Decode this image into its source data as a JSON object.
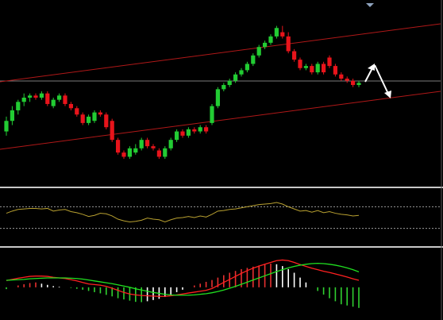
{
  "colors": {
    "background": "#000000",
    "bull_candle": "#22cc33",
    "bear_candle": "#e8141b",
    "channel_line": "#b01818",
    "horizontal_line": "#7a7a7a",
    "panel_separator": "#c8c8c8",
    "oscillator_line": "#b8a030",
    "oscillator_levels": "#9a9a9a",
    "macd_fast": "#ff2020",
    "macd_slow": "#20e020",
    "hist_pos_strong": "#e83030",
    "hist_pos_weak": "#ffffff",
    "hist_neg_strong": "#30d030",
    "hist_neg_weak": "#ffffff",
    "arrow": "#ffffff",
    "scroll_marker": "#8fa4bf"
  },
  "chart_data": [
    {
      "type": "candlestick",
      "panel": "price",
      "x": [
        0,
        1,
        2,
        3,
        4,
        5,
        6,
        7,
        8,
        9,
        10,
        11,
        12,
        13,
        14,
        15,
        16,
        17,
        18,
        19,
        20,
        21,
        22,
        23,
        24,
        25,
        26,
        27,
        28,
        29,
        30,
        31,
        32,
        33,
        34,
        35,
        36,
        37,
        38,
        39,
        40,
        41,
        42,
        43,
        44,
        45,
        46,
        47,
        48,
        49,
        50,
        51,
        52,
        53,
        54,
        55,
        56,
        57,
        58,
        59,
        60
      ],
      "open": [
        80,
        85,
        90,
        94,
        96,
        97,
        96,
        98,
        92,
        95,
        97,
        93,
        91,
        88,
        84,
        85,
        89,
        88,
        85,
        76,
        70,
        68,
        70,
        72,
        76,
        73,
        71,
        68,
        72,
        76,
        80,
        78,
        81,
        80,
        82,
        84,
        92,
        100,
        102,
        104,
        107,
        109,
        112,
        116,
        120,
        122,
        125,
        127,
        125,
        118,
        114,
        110,
        111,
        108,
        112,
        115,
        111,
        107,
        105,
        104,
        102
      ],
      "close": [
        85,
        90,
        94,
        96,
        97,
        96,
        98,
        93,
        95,
        97,
        93,
        91,
        88,
        84,
        87,
        89,
        88,
        82,
        76,
        70,
        68,
        72,
        72,
        76,
        73,
        72,
        68,
        72,
        76,
        80,
        78,
        81,
        80,
        82,
        80,
        92,
        100,
        102,
        104,
        107,
        109,
        112,
        116,
        120,
        122,
        125,
        129,
        125,
        118,
        114,
        110,
        111,
        108,
        112,
        108,
        111,
        107,
        105,
        104,
        102,
        103
      ],
      "high": [
        87,
        92,
        95,
        98,
        98,
        98,
        99,
        99,
        96,
        98,
        98,
        94,
        92,
        89,
        88,
        90,
        90,
        89,
        86,
        77,
        71,
        73,
        74,
        77,
        77,
        74,
        72,
        73,
        77,
        81,
        81,
        82,
        82,
        83,
        83,
        93,
        101,
        103,
        105,
        108,
        110,
        113,
        117,
        121,
        123,
        126,
        130,
        130,
        127,
        119,
        115,
        112,
        112,
        113,
        113,
        116,
        112,
        108,
        106,
        105,
        104
      ],
      "low": [
        78,
        83,
        88,
        92,
        94,
        95,
        95,
        92,
        91,
        94,
        92,
        90,
        87,
        83,
        83,
        84,
        87,
        81,
        75,
        69,
        67,
        67,
        69,
        71,
        72,
        71,
        67,
        67,
        71,
        75,
        77,
        77,
        79,
        79,
        79,
        83,
        91,
        99,
        101,
        103,
        106,
        108,
        111,
        115,
        119,
        121,
        124,
        124,
        117,
        113,
        109,
        109,
        107,
        107,
        107,
        110,
        106,
        104,
        103,
        101,
        101
      ],
      "ylim": [
        55,
        140
      ]
    },
    {
      "type": "line",
      "panel": "oscillator",
      "x": [
        0,
        1,
        2,
        3,
        4,
        5,
        6,
        7,
        8,
        9,
        10,
        11,
        12,
        13,
        14,
        15,
        16,
        17,
        18,
        19,
        20,
        21,
        22,
        23,
        24,
        25,
        26,
        27,
        28,
        29,
        30,
        31,
        32,
        33,
        34,
        35,
        36,
        37,
        38,
        39,
        40,
        41,
        42,
        43,
        44,
        45,
        46,
        47,
        48,
        49,
        50,
        51,
        52,
        53,
        54,
        55,
        56,
        57,
        58,
        59,
        60
      ],
      "series": [
        {
          "values": [
            58,
            62,
            65,
            66,
            67,
            67,
            66,
            67,
            62,
            64,
            65,
            61,
            59,
            56,
            52,
            54,
            58,
            57,
            53,
            47,
            44,
            42,
            43,
            45,
            49,
            47,
            46,
            42,
            46,
            49,
            50,
            52,
            50,
            53,
            51,
            56,
            62,
            63,
            65,
            66,
            68,
            70,
            72,
            74,
            75,
            76,
            78,
            75,
            70,
            66,
            62,
            63,
            60,
            63,
            59,
            61,
            58,
            56,
            55,
            53,
            54
          ]
        }
      ],
      "levels": [
        70,
        30
      ],
      "ylim": [
        0,
        100
      ]
    },
    {
      "type": "line+bar",
      "panel": "macd",
      "x": [
        0,
        1,
        2,
        3,
        4,
        5,
        6,
        7,
        8,
        9,
        10,
        11,
        12,
        13,
        14,
        15,
        16,
        17,
        18,
        19,
        20,
        21,
        22,
        23,
        24,
        25,
        26,
        27,
        28,
        29,
        30,
        31,
        32,
        33,
        34,
        35,
        36,
        37,
        38,
        39,
        40,
        41,
        42,
        43,
        44,
        45,
        46,
        47,
        48,
        49,
        50,
        51,
        52,
        53,
        54,
        55,
        56,
        57,
        58,
        59,
        60
      ],
      "series": [
        {
          "values": [
            2.2,
            2.6,
            3.0,
            3.3,
            3.6,
            3.7,
            3.7,
            3.6,
            3.3,
            3.1,
            2.9,
            2.5,
            2.1,
            1.6,
            1.1,
            0.9,
            0.7,
            0.3,
            -0.3,
            -1.0,
            -1.7,
            -2.2,
            -2.5,
            -2.7,
            -2.8,
            -2.9,
            -3.0,
            -3.0,
            -2.8,
            -2.5,
            -2.2,
            -1.9,
            -1.6,
            -1.3,
            -1.0,
            -0.4,
            0.6,
            1.6,
            2.6,
            3.6,
            4.6,
            5.5,
            6.3,
            7.0,
            7.6,
            8.2,
            8.8,
            9.0,
            8.8,
            8.2,
            7.5,
            6.9,
            6.3,
            5.8,
            5.3,
            4.9,
            4.4,
            3.9,
            3.4,
            2.8,
            2.3
          ]
        },
        {
          "values": [
            2.3,
            2.4,
            2.5,
            2.6,
            2.8,
            2.9,
            3.0,
            3.1,
            3.1,
            3.1,
            3.1,
            3.0,
            2.9,
            2.7,
            2.4,
            2.1,
            1.8,
            1.5,
            1.2,
            0.8,
            0.4,
            -0.0,
            -0.5,
            -0.9,
            -1.3,
            -1.7,
            -2.0,
            -2.3,
            -2.5,
            -2.6,
            -2.6,
            -2.6,
            -2.5,
            -2.3,
            -2.1,
            -1.8,
            -1.4,
            -0.9,
            -0.3,
            0.3,
            1.0,
            1.7,
            2.4,
            3.1,
            3.8,
            4.5,
            5.2,
            5.8,
            6.4,
            6.9,
            7.3,
            7.6,
            7.8,
            7.9,
            7.8,
            7.6,
            7.3,
            6.9,
            6.4,
            5.8,
            5.1
          ]
        }
      ],
      "histogram": [
        -0.6,
        0.0,
        0.6,
        1.0,
        1.4,
        1.6,
        1.2,
        0.8,
        0.4,
        0.2,
        0.0,
        -0.2,
        -0.5,
        -0.8,
        -1.2,
        -1.6,
        -2.0,
        -2.5,
        -3.0,
        -3.6,
        -4.0,
        -4.4,
        -4.8,
        -4.9,
        -4.6,
        -4.2,
        -3.8,
        -3.2,
        -2.4,
        -1.6,
        -0.8,
        0.0,
        0.6,
        1.2,
        1.8,
        2.4,
        3.2,
        4.0,
        4.8,
        5.4,
        6.0,
        6.4,
        6.8,
        7.2,
        7.6,
        7.8,
        7.6,
        7.0,
        6.0,
        4.8,
        3.2,
        1.6,
        0.0,
        -1.2,
        -2.4,
        -3.6,
        -4.6,
        -5.6,
        -6.0,
        -6.4,
        -6.8
      ],
      "ylim": [
        -10,
        12
      ]
    }
  ]
}
